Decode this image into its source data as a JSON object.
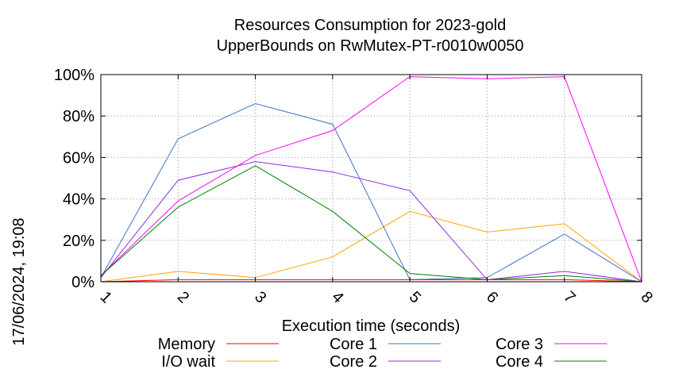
{
  "chart_data": {
    "type": "line",
    "title": [
      "Resources Consumption for 2023-gold",
      "UpperBounds on RwMutex-PT-r0010w0050"
    ],
    "xlabel": "Execution time (seconds)",
    "ylabel": "",
    "timestamp": "17/06/2024, 19:08",
    "x": [
      1,
      2,
      3,
      4,
      5,
      6,
      7,
      8
    ],
    "xlim": [
      1,
      8
    ],
    "ylim": [
      0,
      100
    ],
    "yticks": [
      0,
      20,
      40,
      60,
      80,
      100
    ],
    "ytick_labels": [
      "0%",
      "20%",
      "40%",
      "60%",
      "80%",
      "100%"
    ],
    "xtick_labels": [
      "1",
      "2",
      "3",
      "4",
      "5",
      "6",
      "7",
      "8"
    ],
    "grid": true,
    "legend_position": "bottom",
    "series": [
      {
        "name": "Memory",
        "color": "#ff0000",
        "values": [
          0,
          1,
          1,
          1,
          1,
          1,
          1,
          0
        ]
      },
      {
        "name": "I/O wait",
        "color": "#ffa500",
        "values": [
          0,
          5,
          2,
          12,
          34,
          24,
          28,
          0
        ]
      },
      {
        "name": "Core 1",
        "color": "#4472c4",
        "values": [
          2,
          69,
          86,
          76,
          1,
          2,
          23,
          0
        ]
      },
      {
        "name": "Core 2",
        "color": "#8a2be2",
        "values": [
          2,
          49,
          58,
          53,
          44,
          1,
          5,
          0
        ]
      },
      {
        "name": "Core 3",
        "color": "#ff00ff",
        "values": [
          3,
          39,
          61,
          73,
          99,
          98,
          99,
          0
        ]
      },
      {
        "name": "Core 4",
        "color": "#008000",
        "values": [
          3,
          36,
          56,
          34,
          4,
          1,
          3,
          0
        ]
      }
    ]
  }
}
